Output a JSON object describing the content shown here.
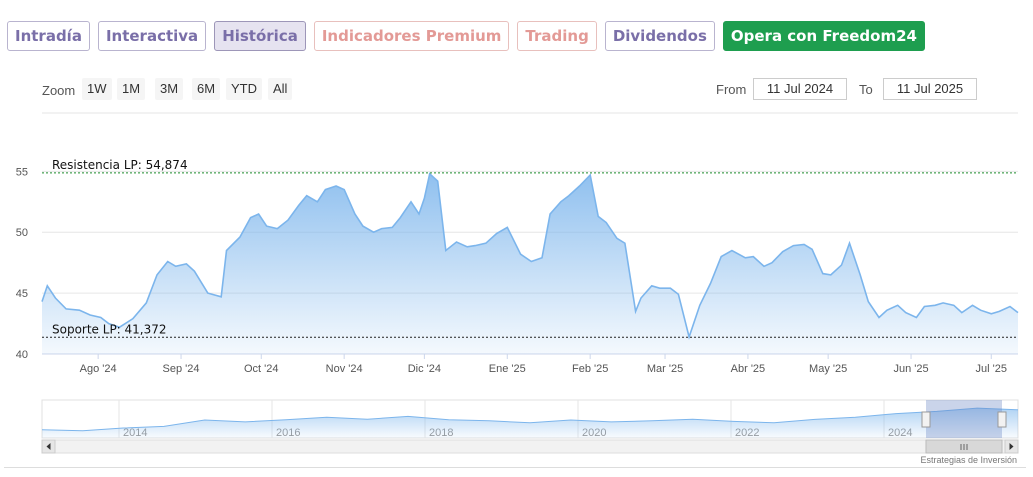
{
  "tabs": [
    {
      "label": "Intradía",
      "style": "normal"
    },
    {
      "label": "Interactiva",
      "style": "normal"
    },
    {
      "label": "Histórica",
      "style": "active"
    },
    {
      "label": "Indicadores Premium",
      "style": "premium"
    },
    {
      "label": "Trading",
      "style": "premium"
    },
    {
      "label": "Dividendos",
      "style": "normal"
    },
    {
      "label": "Opera con Freedom24",
      "style": "cta"
    }
  ],
  "toolbar": {
    "zoom_label": "Zoom",
    "zoom_buttons": [
      "1W",
      "1M",
      "3M",
      "6M",
      "YTD",
      "All"
    ],
    "from_label": "From",
    "from_value": "11 Jul 2024",
    "to_label": "To",
    "to_value": "11 Jul 2025"
  },
  "footer": {
    "credit": "Estrategias de Inversión"
  },
  "chart_data": {
    "type": "area",
    "ylim": [
      40,
      57
    ],
    "yticks": [
      40,
      45,
      50,
      55
    ],
    "grid": true,
    "x_range": [
      "2024-07-11",
      "2025-07-11"
    ],
    "xticks": [
      {
        "date": "2024-08-01",
        "label": "Ago '24"
      },
      {
        "date": "2024-09-01",
        "label": "Sep '24"
      },
      {
        "date": "2024-10-01",
        "label": "Oct '24"
      },
      {
        "date": "2024-11-01",
        "label": "Nov '24"
      },
      {
        "date": "2024-12-01",
        "label": "Dic '24"
      },
      {
        "date": "2025-01-01",
        "label": "Ene '25"
      },
      {
        "date": "2025-02-01",
        "label": "Feb '25"
      },
      {
        "date": "2025-03-01",
        "label": "Mar '25"
      },
      {
        "date": "2025-04-01",
        "label": "Abr '25"
      },
      {
        "date": "2025-05-01",
        "label": "May '25"
      },
      {
        "date": "2025-06-01",
        "label": "Jun '25"
      },
      {
        "date": "2025-07-01",
        "label": "Jul '25"
      }
    ],
    "x": [
      "2024-07-11",
      "2024-07-13",
      "2024-07-16",
      "2024-07-20",
      "2024-07-25",
      "2024-07-29",
      "2024-08-02",
      "2024-08-05",
      "2024-08-09",
      "2024-08-14",
      "2024-08-19",
      "2024-08-23",
      "2024-08-27",
      "2024-08-30",
      "2024-09-03",
      "2024-09-06",
      "2024-09-11",
      "2024-09-16",
      "2024-09-18",
      "2024-09-23",
      "2024-09-27",
      "2024-09-30",
      "2024-10-03",
      "2024-10-07",
      "2024-10-11",
      "2024-10-15",
      "2024-10-18",
      "2024-10-22",
      "2024-10-25",
      "2024-10-29",
      "2024-11-01",
      "2024-11-05",
      "2024-11-08",
      "2024-11-12",
      "2024-11-15",
      "2024-11-19",
      "2024-11-22",
      "2024-11-26",
      "2024-11-29",
      "2024-12-01",
      "2024-12-03",
      "2024-12-06",
      "2024-12-09",
      "2024-12-13",
      "2024-12-17",
      "2024-12-20",
      "2024-12-24",
      "2024-12-28",
      "2025-01-01",
      "2025-01-06",
      "2025-01-10",
      "2025-01-14",
      "2025-01-17",
      "2025-01-21",
      "2025-01-24",
      "2025-01-28",
      "2025-02-01",
      "2025-02-04",
      "2025-02-07",
      "2025-02-11",
      "2025-02-14",
      "2025-02-18",
      "2025-02-20",
      "2025-02-24",
      "2025-02-27",
      "2025-03-03",
      "2025-03-06",
      "2025-03-10",
      "2025-03-14",
      "2025-03-18",
      "2025-03-22",
      "2025-03-26",
      "2025-03-31",
      "2025-04-03",
      "2025-04-07",
      "2025-04-10",
      "2025-04-14",
      "2025-04-18",
      "2025-04-22",
      "2025-04-25",
      "2025-04-29",
      "2025-05-02",
      "2025-05-06",
      "2025-05-09",
      "2025-05-13",
      "2025-05-16",
      "2025-05-20",
      "2025-05-23",
      "2025-05-27",
      "2025-05-30",
      "2025-06-03",
      "2025-06-06",
      "2025-06-10",
      "2025-06-13",
      "2025-06-17",
      "2025-06-20",
      "2025-06-24",
      "2025-06-27",
      "2025-07-01",
      "2025-07-04",
      "2025-07-08",
      "2025-07-11"
    ],
    "values": [
      44.3,
      45.6,
      44.6,
      43.7,
      43.6,
      43.2,
      43.0,
      42.5,
      42.2,
      42.9,
      44.2,
      46.5,
      47.6,
      47.2,
      47.4,
      46.8,
      45.0,
      44.7,
      48.5,
      49.6,
      51.2,
      51.5,
      50.5,
      50.3,
      51.0,
      52.2,
      53.0,
      52.5,
      53.5,
      53.8,
      53.5,
      51.5,
      50.5,
      50.0,
      50.3,
      50.4,
      51.2,
      52.5,
      51.5,
      52.8,
      54.8,
      54.2,
      48.5,
      49.2,
      48.8,
      48.9,
      49.1,
      49.9,
      50.4,
      48.2,
      47.6,
      47.9,
      51.5,
      52.5,
      53.0,
      53.8,
      54.7,
      51.3,
      50.8,
      49.5,
      49.1,
      43.5,
      44.6,
      45.6,
      45.4,
      45.4,
      44.9,
      41.4,
      44.0,
      45.8,
      48.0,
      48.5,
      47.9,
      48.0,
      47.2,
      47.5,
      48.4,
      48.9,
      49.0,
      48.6,
      46.6,
      46.5,
      47.3,
      49.1,
      46.5,
      44.3,
      43.0,
      43.6,
      44.0,
      43.4,
      43.0,
      43.9,
      44.0,
      44.2,
      44.0,
      43.4,
      44.0,
      43.6,
      43.3,
      43.5,
      43.9,
      43.4
    ],
    "line_color": "#7cb5ec",
    "annotations": [
      {
        "label": "Resistencia LP: 54,874",
        "value": 54.874,
        "color": "#1b8a2b"
      },
      {
        "label": "Soporte LP: 41,372",
        "value": 41.372,
        "color": "#222222"
      }
    ],
    "navigator": {
      "year_labels": [
        "2014",
        "2016",
        "2018",
        "2020",
        "2022",
        "2024"
      ],
      "values": [
        37,
        36.6,
        37.6,
        38.2,
        40.5,
        39.8,
        40.6,
        41.5,
        40.8,
        41.8,
        40.6,
        40.2,
        39.5,
        40.5,
        39.8,
        40.2,
        40.8,
        40.0,
        39.5,
        40.7,
        41.5,
        42.8,
        43.6,
        44.8,
        44.2
      ]
    }
  }
}
